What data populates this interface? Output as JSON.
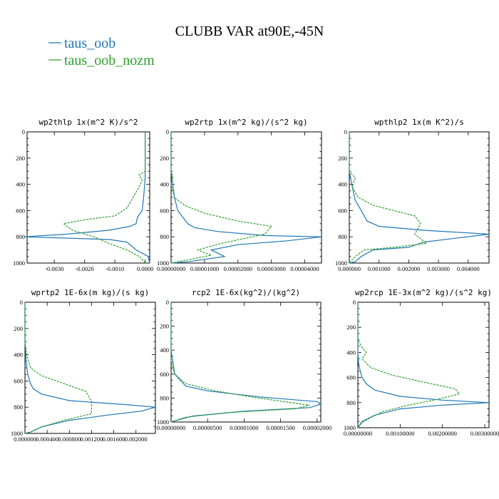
{
  "title": "CLUBB VAR at90E,-45N",
  "legend": [
    {
      "label": "taus_oob",
      "color": "#1f77b4",
      "dash": "solid"
    },
    {
      "label": "taus_oob_nozm",
      "color": "#2ca02c",
      "dash": "dashed"
    }
  ],
  "chart_data": [
    {
      "type": "line",
      "title": "wp2thlp  1x(m^2 K)/s^2",
      "xlim": [
        -0.0039,
        0.00015
      ],
      "ylim": [
        1000,
        0
      ],
      "xticks": [
        -0.003,
        -0.002,
        -0.001,
        0.0
      ],
      "xtick_labels": [
        "-0.0030",
        "-0.0020",
        "-0.0010",
        "0.0000"
      ],
      "yticks": [
        0,
        200,
        400,
        600,
        800,
        1000
      ],
      "ytick_labels": [
        "0",
        "200",
        "400",
        "600",
        "800",
        "1000"
      ],
      "series": [
        {
          "name": "taus_oob",
          "color": "#1f77b4",
          "dash": "solid",
          "points": [
            [
              0.0,
              0
            ],
            [
              0.0,
              200
            ],
            [
              0.0,
              350
            ],
            [
              -5e-05,
              500
            ],
            [
              -0.0001,
              600
            ],
            [
              -0.00025,
              650
            ],
            [
              -0.0003,
              700
            ],
            [
              -0.0005,
              720
            ],
            [
              -0.0012,
              750
            ],
            [
              -0.0026,
              780
            ],
            [
              -0.004,
              800
            ],
            [
              -0.0012,
              820
            ],
            [
              -0.0006,
              840
            ],
            [
              -0.0003,
              900
            ],
            [
              0.0001,
              950
            ],
            [
              0.00015,
              1000
            ]
          ]
        },
        {
          "name": "taus_oob_nozm",
          "color": "#2ca02c",
          "dash": "dashed",
          "points": [
            [
              0.0,
              0
            ],
            [
              0.0,
              300
            ],
            [
              -0.0002,
              330
            ],
            [
              -0.0001,
              370
            ],
            [
              -0.0002,
              420
            ],
            [
              -0.0004,
              500
            ],
            [
              -0.0006,
              580
            ],
            [
              -0.001,
              640
            ],
            [
              -0.002,
              670
            ],
            [
              -0.0027,
              700
            ],
            [
              -0.0024,
              750
            ],
            [
              -0.0017,
              800
            ],
            [
              -0.0012,
              850
            ],
            [
              -0.0006,
              900
            ],
            [
              -0.0002,
              950
            ],
            [
              -0.0001,
              970
            ],
            [
              0.0,
              1000
            ]
          ]
        }
      ]
    },
    {
      "type": "line",
      "title": "wp2rtp  1x(m^2 kg)/(s^2 kg)",
      "xlim": [
        0.0,
        4.5e-05
      ],
      "ylim": [
        1000,
        0
      ],
      "xticks": [
        0.0,
        1e-05,
        2e-05,
        3e-05,
        4e-05
      ],
      "xtick_labels": [
        "0.00000000",
        "0.00001000",
        "0.00002000",
        "0.00003000",
        "0.00004000"
      ],
      "yticks": [
        0,
        200,
        400,
        600,
        800,
        1000
      ],
      "ytick_labels": [
        "0",
        "200",
        "400",
        "600",
        "800",
        "1000"
      ],
      "series": [
        {
          "name": "taus_oob",
          "color": "#1f77b4",
          "dash": "solid",
          "points": [
            [
              0.0,
              0
            ],
            [
              0.0,
              300
            ],
            [
              5e-07,
              400
            ],
            [
              1e-06,
              500
            ],
            [
              2e-06,
              600
            ],
            [
              5e-06,
              700
            ],
            [
              7e-06,
              730
            ],
            [
              1.4e-05,
              760
            ],
            [
              2.8e-05,
              790
            ],
            [
              4.5e-05,
              800
            ],
            [
              3.5e-05,
              830
            ],
            [
              2e-05,
              860
            ],
            [
              1.2e-05,
              900
            ],
            [
              1.6e-05,
              950
            ],
            [
              5e-06,
              990
            ],
            [
              0.0,
              1000
            ]
          ]
        },
        {
          "name": "taus_oob_nozm",
          "color": "#2ca02c",
          "dash": "dashed",
          "points": [
            [
              0.0,
              0
            ],
            [
              0.0,
              300
            ],
            [
              5e-07,
              340
            ],
            [
              0.0,
              400
            ],
            [
              1e-06,
              500
            ],
            [
              4e-06,
              560
            ],
            [
              1e-05,
              620
            ],
            [
              2e-05,
              680
            ],
            [
              3e-05,
              720
            ],
            [
              2.8e-05,
              780
            ],
            [
              1.5e-05,
              850
            ],
            [
              8e-06,
              900
            ],
            [
              1.2e-05,
              940
            ],
            [
              4e-06,
              980
            ],
            [
              0.0,
              1000
            ]
          ]
        }
      ]
    },
    {
      "type": "line",
      "title": "wpthlp2  1x(m K^2)/s",
      "xlim": [
        0.0,
        0.0047
      ],
      "ylim": [
        1000,
        0
      ],
      "xticks": [
        0.0,
        0.001,
        0.002,
        0.003,
        0.004
      ],
      "xtick_labels": [
        "0.000000",
        "0.001000",
        "0.002000",
        "0.003000",
        "0.004000"
      ],
      "yticks": [
        0,
        200,
        400,
        600,
        800,
        1000
      ],
      "ytick_labels": [
        "0",
        "200",
        "400",
        "600",
        "800",
        "1000"
      ],
      "series": [
        {
          "name": "taus_oob",
          "color": "#1f77b4",
          "dash": "solid",
          "points": [
            [
              0.0,
              0
            ],
            [
              0.0,
              300
            ],
            [
              0.0001,
              420
            ],
            [
              0.0002,
              520
            ],
            [
              0.0004,
              600
            ],
            [
              0.0006,
              680
            ],
            [
              0.001,
              720
            ],
            [
              0.0025,
              750
            ],
            [
              0.0047,
              780
            ],
            [
              0.0025,
              840
            ],
            [
              0.002,
              880
            ],
            [
              0.0008,
              900
            ],
            [
              0.0004,
              950
            ],
            [
              0.0002,
              990
            ],
            [
              0.0,
              1000
            ]
          ]
        },
        {
          "name": "taus_oob_nozm",
          "color": "#2ca02c",
          "dash": "dashed",
          "points": [
            [
              0.0,
              0
            ],
            [
              0.0,
              300
            ],
            [
              0.0002,
              350
            ],
            [
              0.0001,
              420
            ],
            [
              0.0003,
              500
            ],
            [
              0.0008,
              560
            ],
            [
              0.0015,
              600
            ],
            [
              0.0022,
              640
            ],
            [
              0.0024,
              700
            ],
            [
              0.0022,
              780
            ],
            [
              0.0026,
              850
            ],
            [
              0.0015,
              880
            ],
            [
              0.0005,
              900
            ],
            [
              0.0002,
              950
            ],
            [
              0.0,
              1000
            ]
          ]
        }
      ]
    },
    {
      "type": "line",
      "title": "wprtp2  1E-6x(m kg)/(s kg)",
      "xlim": [
        0.0,
        0.00235
      ],
      "ylim": [
        1000,
        0
      ],
      "xticks": [
        0.0,
        0.0004,
        0.0008,
        0.0012,
        0.0016,
        0.002
      ],
      "xtick_labels": [
        "0.000000",
        "0.000400",
        "0.000800",
        "0.001200",
        "0.001600",
        "0.002000"
      ],
      "yticks": [
        0,
        200,
        400,
        600,
        800,
        1000
      ],
      "ytick_labels": [
        "0",
        "200",
        "400",
        "600",
        "800",
        "1000"
      ],
      "series": [
        {
          "name": "taus_oob",
          "color": "#1f77b4",
          "dash": "solid",
          "points": [
            [
              0.0,
              0
            ],
            [
              0.0,
              300
            ],
            [
              2e-05,
              450
            ],
            [
              5e-05,
              550
            ],
            [
              0.0001,
              620
            ],
            [
              0.00015,
              660
            ],
            [
              0.0003,
              700
            ],
            [
              0.0008,
              750
            ],
            [
              0.0018,
              780
            ],
            [
              0.00235,
              800
            ],
            [
              0.0021,
              830
            ],
            [
              0.0015,
              860
            ],
            [
              0.0008,
              900
            ],
            [
              0.0003,
              950
            ],
            [
              0.0001,
              990
            ],
            [
              0.0,
              1000
            ]
          ]
        },
        {
          "name": "taus_oob_nozm",
          "color": "#2ca02c",
          "dash": "dashed",
          "points": [
            [
              0.0,
              0
            ],
            [
              0.0,
              300
            ],
            [
              3e-05,
              400
            ],
            [
              0.0001,
              500
            ],
            [
              0.0003,
              560
            ],
            [
              0.0007,
              620
            ],
            [
              0.0011,
              680
            ],
            [
              0.0012,
              760
            ],
            [
              0.0012,
              850
            ],
            [
              0.0007,
              900
            ],
            [
              0.0003,
              950
            ],
            [
              0.0001,
              990
            ],
            [
              0.0,
              1000
            ]
          ]
        }
      ]
    },
    {
      "type": "line",
      "title": "rcp2  1E-6x(kg^2)/(kg^2)",
      "xlim": [
        0.0,
        2.05e-05
      ],
      "ylim": [
        1000,
        0
      ],
      "xticks": [
        0.0,
        5e-06,
        1e-05,
        1.5e-05,
        2e-05
      ],
      "xtick_labels": [
        "0.00000000",
        "0.00000500",
        "0.00001000",
        "0.00001500",
        "0.00002000"
      ],
      "yticks": [
        0,
        200,
        400,
        600,
        800,
        1000
      ],
      "ytick_labels": [
        "0",
        "200",
        "400",
        "600",
        "800",
        "1000"
      ],
      "series": [
        {
          "name": "taus_oob",
          "color": "#1f77b4",
          "dash": "solid",
          "points": [
            [
              0.0,
              0
            ],
            [
              0.0,
              400
            ],
            [
              5e-07,
              600
            ],
            [
              2e-06,
              700
            ],
            [
              5e-06,
              740
            ],
            [
              1.2e-05,
              790
            ],
            [
              2e-05,
              830
            ],
            [
              2.05e-05,
              850
            ],
            [
              1.9e-05,
              880
            ],
            [
              1e-05,
              910
            ],
            [
              3e-06,
              950
            ],
            [
              5e-07,
              990
            ],
            [
              0.0,
              1000
            ]
          ]
        },
        {
          "name": "taus_oob_nozm",
          "color": "#2ca02c",
          "dash": "dashed",
          "points": [
            [
              0.0,
              0
            ],
            [
              0.0,
              500
            ],
            [
              5e-07,
              600
            ],
            [
              2e-06,
              680
            ],
            [
              6e-06,
              740
            ],
            [
              1.2e-05,
              800
            ],
            [
              1.9e-05,
              860
            ],
            [
              1.7e-05,
              890
            ],
            [
              8e-06,
              920
            ],
            [
              2e-06,
              960
            ],
            [
              0.0,
              1000
            ]
          ]
        }
      ]
    },
    {
      "type": "line",
      "title": "wp2rcp  1E-3x(m^2 kg)/(s^2 kg)",
      "xlim": [
        0.0,
        0.0031
      ],
      "ylim": [
        1000,
        0
      ],
      "xticks": [
        0.0,
        0.001,
        0.002,
        0.003
      ],
      "xtick_labels": [
        "0.00000000",
        "0.00100000",
        "0.00200000",
        "0.00300000"
      ],
      "yticks": [
        0,
        200,
        400,
        600,
        800,
        1000
      ],
      "ytick_labels": [
        "0",
        "200",
        "400",
        "600",
        "800",
        "1000"
      ],
      "series": [
        {
          "name": "taus_oob",
          "color": "#1f77b4",
          "dash": "solid",
          "points": [
            [
              0.0,
              0
            ],
            [
              0.0,
              400
            ],
            [
              2e-05,
              500
            ],
            [
              0.0001,
              600
            ],
            [
              0.0002,
              650
            ],
            [
              0.0004,
              700
            ],
            [
              0.001,
              750
            ],
            [
              0.002,
              780
            ],
            [
              0.0031,
              800
            ],
            [
              0.002,
              820
            ],
            [
              0.001,
              850
            ],
            [
              0.0004,
              900
            ],
            [
              0.0001,
              950
            ],
            [
              0.0,
              1000
            ]
          ]
        },
        {
          "name": "taus_oob_nozm",
          "color": "#2ca02c",
          "dash": "dashed",
          "points": [
            [
              0.0,
              0
            ],
            [
              0.0,
              300
            ],
            [
              0.0001,
              360
            ],
            [
              0.0002,
              400
            ],
            [
              0.0001,
              450
            ],
            [
              0.0003,
              520
            ],
            [
              0.0008,
              580
            ],
            [
              0.0016,
              640
            ],
            [
              0.0023,
              690
            ],
            [
              0.0024,
              730
            ],
            [
              0.0018,
              780
            ],
            [
              0.0012,
              820
            ],
            [
              0.0006,
              870
            ],
            [
              0.0003,
              920
            ],
            [
              0.0001,
              960
            ],
            [
              0.0,
              1000
            ]
          ]
        }
      ]
    }
  ]
}
